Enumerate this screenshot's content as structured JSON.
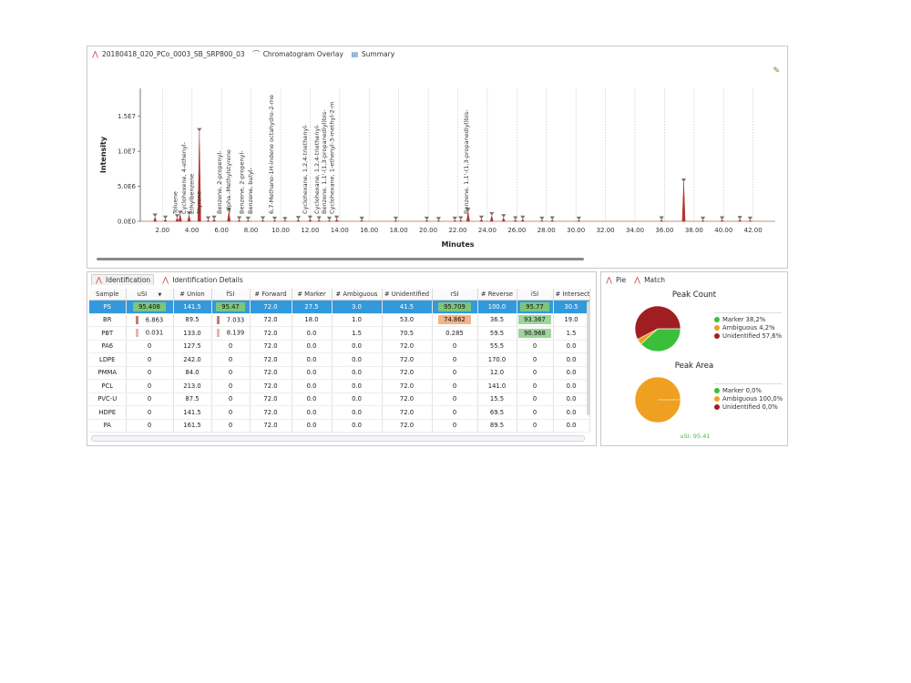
{
  "chromatogram_panel": {
    "tabs": [
      {
        "label": "20180418_020_PCo_0003_SB_SRP800_03",
        "icon": "chromatogram-icon"
      },
      {
        "label": "Chromatogram Overlay",
        "icon": "overlay-icon"
      },
      {
        "label": "Summary",
        "icon": "summary-icon"
      }
    ]
  },
  "chart_data": {
    "type": "line",
    "xlabel": "Minutes",
    "ylabel": "Intensity",
    "xlim": [
      0.5,
      43.5
    ],
    "ylim": [
      0,
      19000000
    ],
    "x_ticks": [
      "2.00",
      "4.00",
      "6.00",
      "8.00",
      "10.00",
      "12.00",
      "14.00",
      "16.00",
      "18.00",
      "20.00",
      "22.00",
      "24.00",
      "26.00",
      "28.00",
      "30.00",
      "32.00",
      "34.00",
      "36.00",
      "38.00",
      "40.00",
      "42.00"
    ],
    "y_ticks": [
      {
        "label": "0.0E0",
        "value": 0
      },
      {
        "label": "5.0E6",
        "value": 5000000
      },
      {
        "label": "1.0E7",
        "value": 10000000
      },
      {
        "label": "1.5E7",
        "value": 15000000
      }
    ],
    "peaks": [
      {
        "x": 1.5,
        "y": 600000
      },
      {
        "x": 2.2,
        "y": 300000
      },
      {
        "x": 3.0,
        "y": 500000
      },
      {
        "x": 3.2,
        "y": 1000000
      },
      {
        "x": 3.8,
        "y": 900000
      },
      {
        "x": 4.5,
        "y": 12800000
      },
      {
        "x": 5.1,
        "y": 200000
      },
      {
        "x": 5.5,
        "y": 300000
      },
      {
        "x": 6.5,
        "y": 1400000
      },
      {
        "x": 7.2,
        "y": 200000
      },
      {
        "x": 7.8,
        "y": 150000
      },
      {
        "x": 8.8,
        "y": 200000
      },
      {
        "x": 9.6,
        "y": 150000
      },
      {
        "x": 10.3,
        "y": 100000
      },
      {
        "x": 11.2,
        "y": 250000
      },
      {
        "x": 12.0,
        "y": 300000
      },
      {
        "x": 12.6,
        "y": 200000
      },
      {
        "x": 13.3,
        "y": 150000
      },
      {
        "x": 13.8,
        "y": 300000
      },
      {
        "x": 15.5,
        "y": 150000
      },
      {
        "x": 17.8,
        "y": 150000
      },
      {
        "x": 19.9,
        "y": 150000
      },
      {
        "x": 20.7,
        "y": 100000
      },
      {
        "x": 21.8,
        "y": 150000
      },
      {
        "x": 22.2,
        "y": 200000
      },
      {
        "x": 22.7,
        "y": 1400000
      },
      {
        "x": 23.6,
        "y": 300000
      },
      {
        "x": 24.3,
        "y": 800000
      },
      {
        "x": 25.1,
        "y": 500000
      },
      {
        "x": 25.9,
        "y": 200000
      },
      {
        "x": 26.4,
        "y": 300000
      },
      {
        "x": 27.7,
        "y": 150000
      },
      {
        "x": 28.4,
        "y": 200000
      },
      {
        "x": 30.2,
        "y": 150000
      },
      {
        "x": 35.8,
        "y": 200000
      },
      {
        "x": 37.3,
        "y": 5600000
      },
      {
        "x": 38.6,
        "y": 150000
      },
      {
        "x": 39.9,
        "y": 200000
      },
      {
        "x": 41.1,
        "y": 250000
      },
      {
        "x": 41.8,
        "y": 150000
      }
    ],
    "labels": [
      {
        "text": "Toluene",
        "x": 3.0
      },
      {
        "text": "Cyclohexene, 4-ethenyl-",
        "x": 3.6
      },
      {
        "text": "Ethylbenzene",
        "x": 4.1
      },
      {
        "text": "Styrene",
        "x": 4.6
      },
      {
        "text": "Benzene, 2-propenyl-",
        "x": 6.0
      },
      {
        "text": ".alpha.-Methylstyrene",
        "x": 6.6
      },
      {
        "text": "Benzene, 2-propenyl-",
        "x": 7.5
      },
      {
        "text": "Benzene, butyl-",
        "x": 8.1
      },
      {
        "text": "6,7-Methano-1H-indene octahydro-2-me",
        "x": 9.5
      },
      {
        "text": "Cyclohexane, 1,2,4-triethenyl-",
        "x": 11.8
      },
      {
        "text": "Cyclohexane, 1,2,4-triethenyl-",
        "x": 12.6
      },
      {
        "text": "Benzene, 1,1'-(1,3-propanediyl)bis-",
        "x": 13.1
      },
      {
        "text": "Cyclohexane, 1-ethenyl-3-methyl-2-m",
        "x": 13.6
      },
      {
        "text": "Benzene, 1,1'-(1,3-propanediyl)bis-",
        "x": 22.7
      }
    ]
  },
  "identification_panel": {
    "tabs": [
      {
        "label": "Identification",
        "icon": "identification-icon"
      },
      {
        "label": "Identification Details",
        "icon": "details-icon"
      }
    ],
    "columns": [
      "Sample",
      "uSI",
      "# Union",
      "fSI",
      "# Forward",
      "# Marker",
      "# Ambiguous",
      "# Unidentified",
      "rSI",
      "# Reverse",
      "iSI",
      "# Intersection"
    ],
    "sort_marker": "▼",
    "rows": [
      {
        "sample": "PS",
        "usi": "95.408",
        "union": "141.5",
        "fsi": "95.47",
        "forward": "72.0",
        "marker": "27.5",
        "ambiguous": "3.0",
        "unidentified": "41.5",
        "rsi": "95.709",
        "reverse": "100.0",
        "isi": "95.77",
        "intersection": "30.5",
        "selected": true
      },
      {
        "sample": "BR",
        "usi": "6.863",
        "union": "89.5",
        "fsi": "7.033",
        "forward": "72.0",
        "marker": "18.0",
        "ambiguous": "1.0",
        "unidentified": "53.0",
        "rsi": "74.862",
        "reverse": "36.5",
        "isi": "93.367",
        "intersection": "19.0"
      },
      {
        "sample": "PBT",
        "usi": "0.031",
        "union": "133.0",
        "fsi": "8.139",
        "forward": "72.0",
        "marker": "0.0",
        "ambiguous": "1.5",
        "unidentified": "70.5",
        "rsi": "0.285",
        "reverse": "59.5",
        "isi": "90.968",
        "intersection": "1.5"
      },
      {
        "sample": "PA6",
        "usi": "0",
        "union": "127.5",
        "fsi": "0",
        "forward": "72.0",
        "marker": "0.0",
        "ambiguous": "0.0",
        "unidentified": "72.0",
        "rsi": "0",
        "reverse": "55.5",
        "isi": "0",
        "intersection": "0.0"
      },
      {
        "sample": "LDPE",
        "usi": "0",
        "union": "242.0",
        "fsi": "0",
        "forward": "72.0",
        "marker": "0.0",
        "ambiguous": "0.0",
        "unidentified": "72.0",
        "rsi": "0",
        "reverse": "170.0",
        "isi": "0",
        "intersection": "0.0"
      },
      {
        "sample": "PMMA",
        "usi": "0",
        "union": "84.0",
        "fsi": "0",
        "forward": "72.0",
        "marker": "0.0",
        "ambiguous": "0.0",
        "unidentified": "72.0",
        "rsi": "0",
        "reverse": "12.0",
        "isi": "0",
        "intersection": "0.0"
      },
      {
        "sample": "PCL",
        "usi": "0",
        "union": "213.0",
        "fsi": "0",
        "forward": "72.0",
        "marker": "0.0",
        "ambiguous": "0.0",
        "unidentified": "72.0",
        "rsi": "0",
        "reverse": "141.0",
        "isi": "0",
        "intersection": "0.0"
      },
      {
        "sample": "PVC-U",
        "usi": "0",
        "union": "87.5",
        "fsi": "0",
        "forward": "72.0",
        "marker": "0.0",
        "ambiguous": "0.0",
        "unidentified": "72.0",
        "rsi": "0",
        "reverse": "15.5",
        "isi": "0",
        "intersection": "0.0"
      },
      {
        "sample": "HDPE",
        "usi": "0",
        "union": "141.5",
        "fsi": "0",
        "forward": "72.0",
        "marker": "0.0",
        "ambiguous": "0.0",
        "unidentified": "72.0",
        "rsi": "0",
        "reverse": "69.5",
        "isi": "0",
        "intersection": "0.0"
      },
      {
        "sample": "PA",
        "usi": "0",
        "union": "161.5",
        "fsi": "0",
        "forward": "72.0",
        "marker": "0.0",
        "ambiguous": "0.0",
        "unidentified": "72.0",
        "rsi": "0",
        "reverse": "89.5",
        "isi": "0",
        "intersection": "0.0"
      }
    ]
  },
  "pie_panel": {
    "tabs": [
      {
        "label": "Pie",
        "icon": "pie-icon"
      },
      {
        "label": "Match",
        "icon": "match-icon"
      }
    ],
    "charts": [
      {
        "title": "Peak Count",
        "slices": [
          {
            "label": "Marker 38,2%",
            "value": 38.2,
            "color": "#3bbf3b"
          },
          {
            "label": "Ambiguous 4,2%",
            "value": 4.2,
            "color": "#f0a020"
          },
          {
            "label": "Unidentified 57,6%",
            "value": 57.6,
            "color": "#a01e22"
          }
        ]
      },
      {
        "title": "Peak Area",
        "slices": [
          {
            "label": "Marker 0,0%",
            "value": 0,
            "color": "#3bbf3b"
          },
          {
            "label": "Ambiguous 100,0%",
            "value": 100,
            "color": "#f0a020"
          },
          {
            "label": "Unidentified 0,0%",
            "value": 0,
            "color": "#a01e22"
          }
        ]
      }
    ],
    "footer": "uSI: 95.41"
  }
}
